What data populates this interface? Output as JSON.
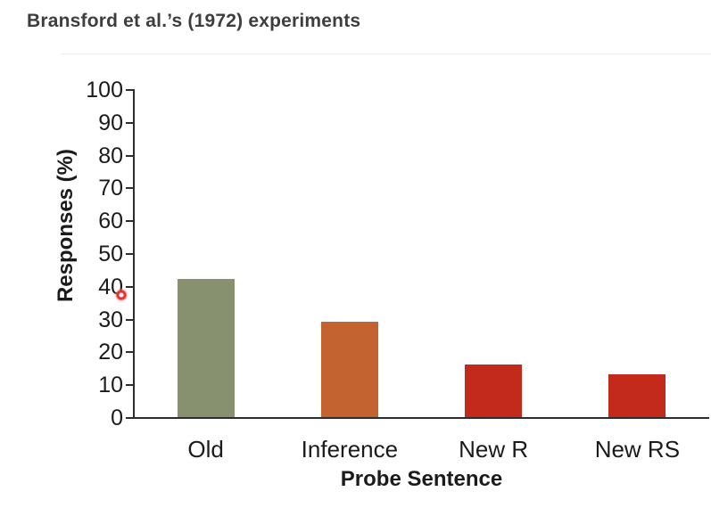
{
  "title": "Bransford et al.’s (1972) experiments",
  "chart_data": {
    "type": "bar",
    "categories": [
      "Old",
      "Inference",
      "New R",
      "New RS"
    ],
    "values": [
      42,
      29,
      16,
      13
    ],
    "bar_colors": [
      "#87906F",
      "#C26330",
      "#C32A1C",
      "#C32A1C"
    ],
    "title": "Bransford et al.’s (1972) experiments",
    "xlabel": "Probe Sentence",
    "ylabel": "Responses (%)",
    "ylim": [
      0,
      100
    ],
    "yticks": [
      0,
      10,
      20,
      30,
      40,
      50,
      60,
      70,
      80,
      90,
      100
    ],
    "grid": false,
    "legend": "none"
  },
  "annotations": {
    "laser_dot_color": "#E8312F"
  },
  "style": {
    "axis_color": "#2D2D2D",
    "text_color": "#1B1B1B",
    "title_color": "#3E3E3E"
  }
}
